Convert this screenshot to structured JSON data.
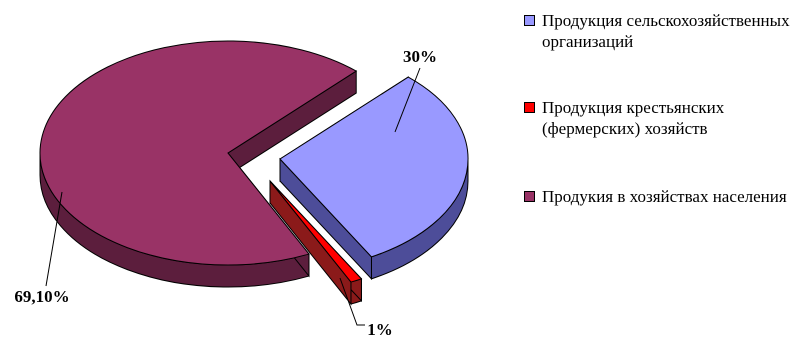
{
  "chart_data": {
    "type": "pie",
    "style": "3d-exploded",
    "title": "",
    "slices": [
      {
        "label": "Продукция сельскохозяйственных организаций",
        "value": 30,
        "data_label": "30%",
        "color": "#9999ff",
        "side_color": "#4d4d99"
      },
      {
        "label": "Продукция крестьянских (фермерских) хозяйств",
        "value": 1,
        "data_label": "1%",
        "color": "#ff0000",
        "side_color": "#8b1a1a"
      },
      {
        "label": "Продукия в хозяйствах населения",
        "value": 69.1,
        "data_label": "69,10%",
        "color": "#993366",
        "side_color": "#5c1e3d"
      }
    ],
    "legend_position": "right",
    "grid": false
  }
}
